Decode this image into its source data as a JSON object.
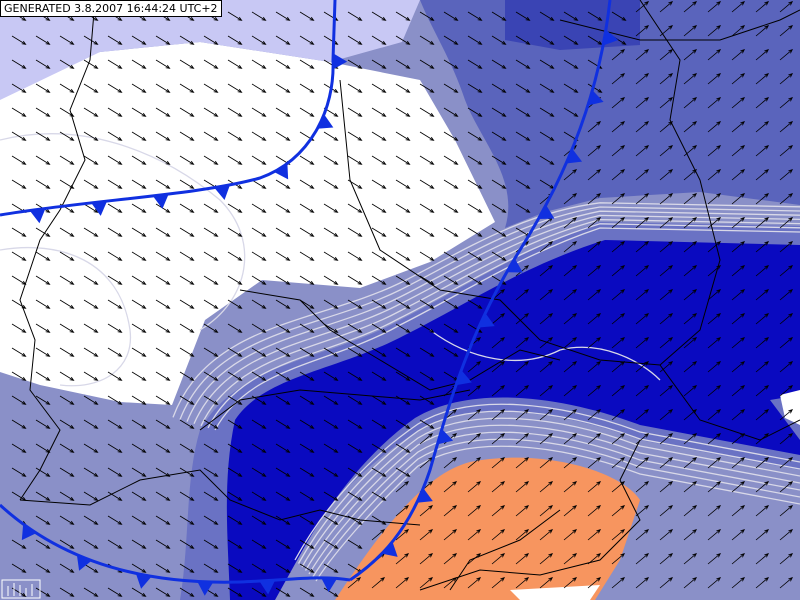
{
  "header": {
    "timestamp": "GENERATED 3.8.2007 16:44:24 UTC+2"
  }
}
